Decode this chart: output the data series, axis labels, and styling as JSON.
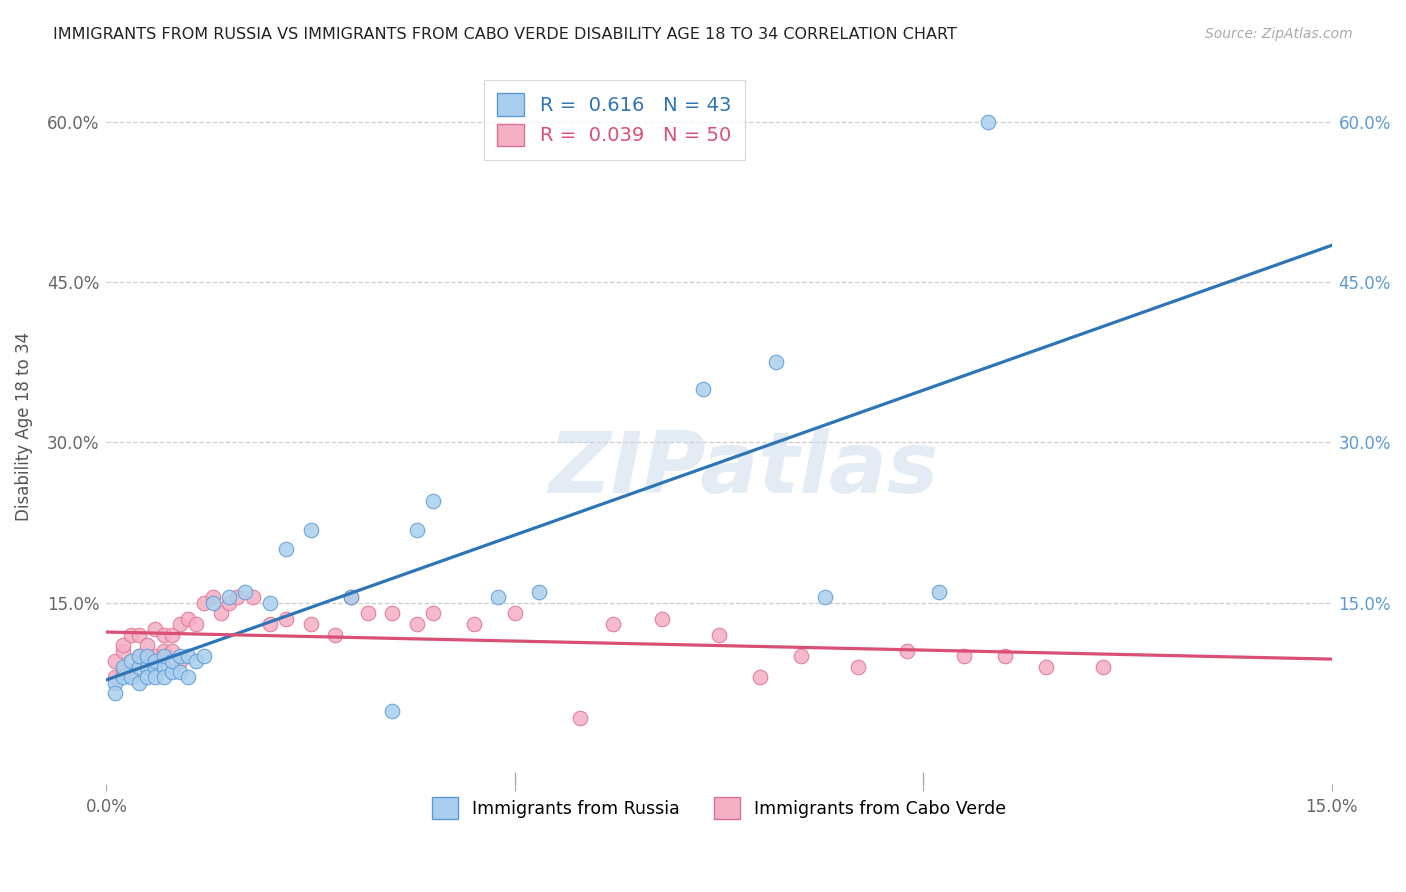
{
  "title": "IMMIGRANTS FROM RUSSIA VS IMMIGRANTS FROM CABO VERDE DISABILITY AGE 18 TO 34 CORRELATION CHART",
  "source": "Source: ZipAtlas.com",
  "ylabel": "Disability Age 18 to 34",
  "xlim": [
    0.0,
    0.15
  ],
  "ylim": [
    -0.02,
    0.65
  ],
  "xticks": [
    0.0,
    0.05,
    0.1,
    0.15
  ],
  "xtick_labels": [
    "0.0%",
    "",
    "",
    "15.0%"
  ],
  "yticks": [
    0.0,
    0.15,
    0.3,
    0.45,
    0.6
  ],
  "ytick_labels": [
    "",
    "15.0%",
    "30.0%",
    "45.0%",
    "60.0%"
  ],
  "russia_R": "0.616",
  "russia_N": "43",
  "caboverde_R": "0.039",
  "caboverde_N": "50",
  "russia_color": "#aacfee",
  "russia_edge_color": "#5b9bd5",
  "russia_line_color": "#2e75b6",
  "caboverde_color": "#f4b0c5",
  "caboverde_edge_color": "#e07090",
  "caboverde_line_color": "#d94f75",
  "watermark_text": "ZIPatlas",
  "watermark_color": "#c8d9ea",
  "background_color": "#ffffff",
  "grid_color": "#c8c8c8",
  "russia_x": [
    0.001,
    0.001,
    0.002,
    0.002,
    0.003,
    0.003,
    0.004,
    0.004,
    0.004,
    0.005,
    0.005,
    0.005,
    0.006,
    0.006,
    0.006,
    0.007,
    0.007,
    0.007,
    0.008,
    0.008,
    0.009,
    0.009,
    0.01,
    0.01,
    0.011,
    0.012,
    0.013,
    0.015,
    0.017,
    0.02,
    0.022,
    0.025,
    0.03,
    0.035,
    0.038,
    0.04,
    0.048,
    0.053,
    0.073,
    0.082,
    0.088,
    0.102,
    0.108
  ],
  "russia_y": [
    0.075,
    0.065,
    0.08,
    0.09,
    0.08,
    0.095,
    0.075,
    0.09,
    0.1,
    0.09,
    0.08,
    0.1,
    0.09,
    0.08,
    0.095,
    0.09,
    0.08,
    0.1,
    0.085,
    0.095,
    0.085,
    0.1,
    0.08,
    0.1,
    0.095,
    0.1,
    0.15,
    0.155,
    0.16,
    0.15,
    0.2,
    0.218,
    0.155,
    0.048,
    0.218,
    0.245,
    0.155,
    0.16,
    0.35,
    0.375,
    0.155,
    0.16,
    0.6
  ],
  "caboverde_x": [
    0.001,
    0.001,
    0.002,
    0.002,
    0.002,
    0.003,
    0.003,
    0.004,
    0.004,
    0.005,
    0.005,
    0.006,
    0.006,
    0.007,
    0.007,
    0.008,
    0.008,
    0.009,
    0.009,
    0.01,
    0.011,
    0.012,
    0.013,
    0.014,
    0.015,
    0.016,
    0.018,
    0.02,
    0.022,
    0.025,
    0.028,
    0.03,
    0.032,
    0.035,
    0.038,
    0.04,
    0.045,
    0.05,
    0.058,
    0.062,
    0.068,
    0.075,
    0.08,
    0.085,
    0.092,
    0.098,
    0.105,
    0.11,
    0.115,
    0.122
  ],
  "caboverde_y": [
    0.095,
    0.08,
    0.105,
    0.085,
    0.11,
    0.085,
    0.12,
    0.1,
    0.12,
    0.11,
    0.09,
    0.125,
    0.1,
    0.12,
    0.105,
    0.12,
    0.105,
    0.13,
    0.095,
    0.135,
    0.13,
    0.15,
    0.155,
    0.14,
    0.15,
    0.155,
    0.155,
    0.13,
    0.135,
    0.13,
    0.12,
    0.155,
    0.14,
    0.14,
    0.13,
    0.14,
    0.13,
    0.14,
    0.042,
    0.13,
    0.135,
    0.12,
    0.08,
    0.1,
    0.09,
    0.105,
    0.1,
    0.1,
    0.09,
    0.09
  ]
}
